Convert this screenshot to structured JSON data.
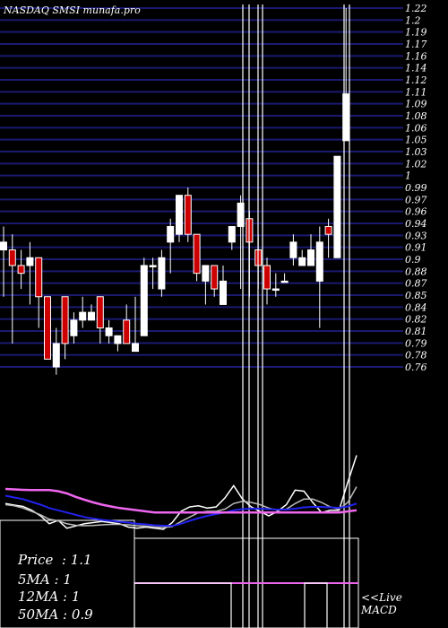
{
  "chart_data": {
    "type": "candlestick",
    "title": "NASDAQ SMSI munafa.pro",
    "y_ticks": [
      "1.22",
      "1.2",
      "1.19",
      "1.17",
      "1.16",
      "1.14",
      "1.12",
      "1.11",
      "1.09",
      "1.08",
      "1.06",
      "1.05",
      "1.03",
      "1.02",
      "1",
      "0.99",
      "0.97",
      "0.96",
      "0.94",
      "0.93",
      "0.91",
      "0.9",
      "0.88",
      "0.87",
      "0.85",
      "0.84",
      "0.82",
      "0.81",
      "0.79",
      "0.78",
      "0.76"
    ],
    "ylim": [
      0.76,
      1.22
    ],
    "candles": [
      {
        "o": 0.92,
        "h": 0.94,
        "l": 0.85,
        "c": 0.91,
        "dir": "up"
      },
      {
        "o": 0.91,
        "h": 0.93,
        "l": 0.79,
        "c": 0.89,
        "dir": "down"
      },
      {
        "o": 0.89,
        "h": 0.91,
        "l": 0.86,
        "c": 0.88,
        "dir": "down"
      },
      {
        "o": 0.89,
        "h": 0.92,
        "l": 0.84,
        "c": 0.9,
        "dir": "up"
      },
      {
        "o": 0.9,
        "h": 0.9,
        "l": 0.81,
        "c": 0.85,
        "dir": "down"
      },
      {
        "o": 0.85,
        "h": 0.85,
        "l": 0.77,
        "c": 0.77,
        "dir": "down"
      },
      {
        "o": 0.76,
        "h": 0.81,
        "l": 0.75,
        "c": 0.79,
        "dir": "up"
      },
      {
        "o": 0.85,
        "h": 0.85,
        "l": 0.77,
        "c": 0.79,
        "dir": "down"
      },
      {
        "o": 0.8,
        "h": 0.83,
        "l": 0.79,
        "c": 0.82,
        "dir": "up"
      },
      {
        "o": 0.82,
        "h": 0.85,
        "l": 0.81,
        "c": 0.83,
        "dir": "up"
      },
      {
        "o": 0.82,
        "h": 0.84,
        "l": 0.82,
        "c": 0.83,
        "dir": "up"
      },
      {
        "o": 0.85,
        "h": 0.85,
        "l": 0.79,
        "c": 0.81,
        "dir": "down"
      },
      {
        "o": 0.8,
        "h": 0.82,
        "l": 0.79,
        "c": 0.81,
        "dir": "up"
      },
      {
        "o": 0.79,
        "h": 0.8,
        "l": 0.78,
        "c": 0.8,
        "dir": "up"
      },
      {
        "o": 0.82,
        "h": 0.84,
        "l": 0.79,
        "c": 0.79,
        "dir": "down"
      },
      {
        "o": 0.78,
        "h": 0.85,
        "l": 0.78,
        "c": 0.79,
        "dir": "up"
      },
      {
        "o": 0.8,
        "h": 0.9,
        "l": 0.8,
        "c": 0.89,
        "dir": "up"
      },
      {
        "o": 0.89,
        "h": 0.9,
        "l": 0.86,
        "c": 0.89,
        "dir": "up"
      },
      {
        "o": 0.86,
        "h": 0.91,
        "l": 0.85,
        "c": 0.9,
        "dir": "up"
      },
      {
        "o": 0.92,
        "h": 0.95,
        "l": 0.88,
        "c": 0.94,
        "dir": "up"
      },
      {
        "o": 0.98,
        "h": 0.98,
        "l": 0.92,
        "c": 0.93,
        "dir": "up"
      },
      {
        "o": 0.98,
        "h": 0.99,
        "l": 0.92,
        "c": 0.93,
        "dir": "down"
      },
      {
        "o": 0.93,
        "h": 0.93,
        "l": 0.87,
        "c": 0.88,
        "dir": "down"
      },
      {
        "o": 0.89,
        "h": 0.89,
        "l": 0.84,
        "c": 0.87,
        "dir": "up"
      },
      {
        "o": 0.89,
        "h": 0.89,
        "l": 0.85,
        "c": 0.86,
        "dir": "down"
      },
      {
        "o": 0.84,
        "h": 0.89,
        "l": 0.84,
        "c": 0.87,
        "dir": "up"
      },
      {
        "o": 0.92,
        "h": 0.94,
        "l": 0.91,
        "c": 0.94,
        "dir": "up"
      },
      {
        "o": 0.94,
        "h": 0.98,
        "l": 0.86,
        "c": 0.97,
        "dir": "up"
      },
      {
        "o": 0.95,
        "h": 0.96,
        "l": 0.85,
        "c": 0.92,
        "dir": "down"
      },
      {
        "o": 0.91,
        "h": 0.93,
        "l": 0.86,
        "c": 0.89,
        "dir": "down"
      },
      {
        "o": 0.89,
        "h": 0.9,
        "l": 0.84,
        "c": 0.86,
        "dir": "down"
      },
      {
        "o": 0.86,
        "h": 0.88,
        "l": 0.85,
        "c": 0.86,
        "dir": "up"
      },
      {
        "o": 0.87,
        "h": 0.88,
        "l": 0.87,
        "c": 0.87,
        "dir": "up"
      },
      {
        "o": 0.9,
        "h": 0.93,
        "l": 0.89,
        "c": 0.92,
        "dir": "up"
      },
      {
        "o": 0.89,
        "h": 0.91,
        "l": 0.89,
        "c": 0.9,
        "dir": "up"
      },
      {
        "o": 0.89,
        "h": 0.93,
        "l": 0.89,
        "c": 0.91,
        "dir": "up"
      },
      {
        "o": 0.87,
        "h": 0.94,
        "l": 0.81,
        "c": 0.92,
        "dir": "up"
      },
      {
        "o": 0.94,
        "h": 0.95,
        "l": 0.9,
        "c": 0.93,
        "dir": "down"
      },
      {
        "o": 0.9,
        "h": 1.03,
        "l": 0.9,
        "c": 1.03,
        "dir": "up"
      },
      {
        "o": 1.05,
        "h": 1.22,
        "l": 1.05,
        "c": 1.11,
        "dir": "up"
      }
    ],
    "indicator": {
      "type": "line",
      "name": "MACD",
      "series": [
        {
          "color": "#ffffff",
          "values": [
            0.35,
            0.28,
            0.22,
            0.05,
            -0.2,
            -0.55,
            -0.4,
            -0.75,
            -0.65,
            -0.55,
            -0.5,
            -0.45,
            -0.5,
            -0.55,
            -0.7,
            -0.75,
            -0.7,
            -0.75,
            -0.8,
            -0.5,
            0.0,
            0.2,
            0.25,
            0.15,
            0.2,
            0.6,
            1.15,
            0.55,
            0.2,
            0.0,
            -0.2,
            0.0,
            0.3,
            0.95,
            0.9,
            0.4,
            -0.05,
            0.05,
            0.05,
            1.3,
            2.5
          ]
        },
        {
          "color": "#bbbbbb",
          "values": [
            0.3,
            0.25,
            0.15,
            0.0,
            -0.15,
            -0.35,
            -0.42,
            -0.55,
            -0.62,
            -0.64,
            -0.63,
            -0.6,
            -0.58,
            -0.58,
            -0.6,
            -0.64,
            -0.66,
            -0.7,
            -0.72,
            -0.68,
            -0.45,
            -0.25,
            -0.05,
            0.0,
            0.0,
            0.1,
            0.35,
            0.45,
            0.4,
            0.3,
            0.15,
            0.05,
            0.1,
            0.35,
            0.55,
            0.55,
            0.4,
            0.2,
            0.1,
            0.4,
            1.1
          ]
        },
        {
          "color": "#2222ee",
          "values": [
            0.7,
            0.62,
            0.55,
            0.42,
            0.3,
            0.15,
            0.05,
            -0.05,
            -0.15,
            -0.25,
            -0.32,
            -0.38,
            -0.42,
            -0.46,
            -0.5,
            -0.55,
            -0.58,
            -0.62,
            -0.64,
            -0.65,
            -0.55,
            -0.42,
            -0.3,
            -0.2,
            -0.12,
            -0.05,
            0.05,
            0.1,
            0.12,
            0.12,
            0.1,
            0.08,
            0.08,
            0.12,
            0.18,
            0.2,
            0.2,
            0.18,
            0.16,
            0.22,
            0.35
          ]
        },
        {
          "color": "#ee66ee",
          "values": [
            1.0,
            0.98,
            0.96,
            0.95,
            0.95,
            0.95,
            0.9,
            0.8,
            0.65,
            0.52,
            0.4,
            0.3,
            0.22,
            0.15,
            0.1,
            0.05,
            0.0,
            -0.05,
            -0.05,
            -0.05,
            -0.05,
            -0.05,
            -0.05,
            -0.05,
            -0.05,
            -0.05,
            -0.05,
            -0.05,
            -0.05,
            -0.05,
            -0.05,
            -0.05,
            -0.05,
            -0.05,
            -0.05,
            -0.05,
            -0.05,
            -0.05,
            -0.05,
            0.0,
            0.05
          ]
        }
      ]
    }
  },
  "info": {
    "price": "Price  : 1.1",
    "ma5": "5MA : 1",
    "ma12": "12MA : 1",
    "ma50": "50MA : 0.9"
  },
  "live": {
    "line1": "<<Live",
    "line2": "MACD"
  },
  "colors": {
    "background": "#000000",
    "grid": "#1a1a70",
    "candle_up": "#ffffff",
    "candle_down": "#cc0000"
  }
}
